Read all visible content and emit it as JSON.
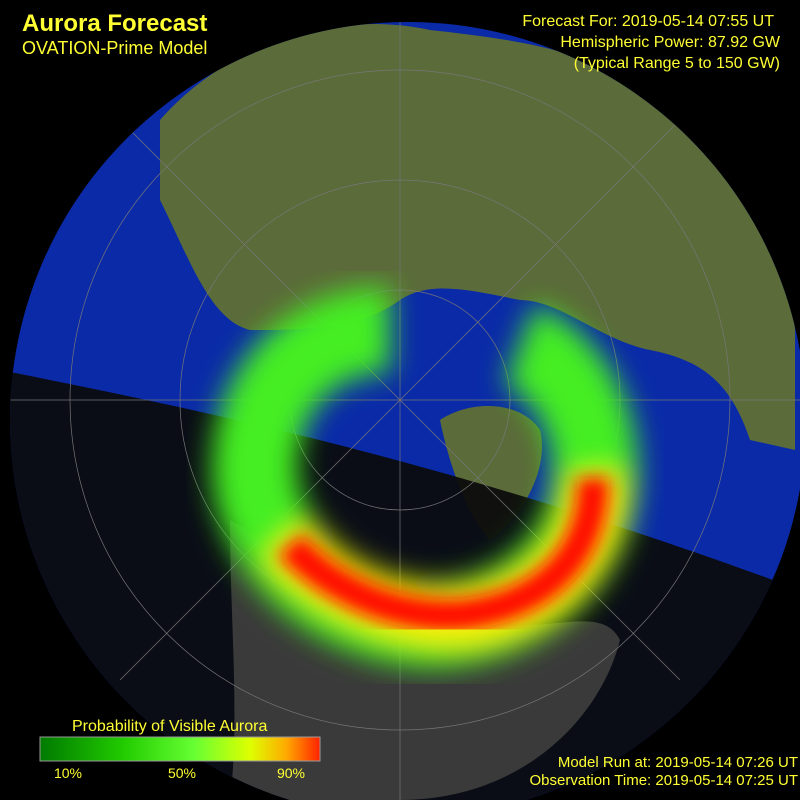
{
  "header": {
    "title": "Aurora Forecast",
    "subtitle": "OVATION-Prime Model"
  },
  "info": {
    "forecast_for": "Forecast For: 2019-05-14 07:55 UT",
    "hemispheric_power": "Hemispheric Power: 87.92 GW",
    "typical_range": "(Typical Range 5 to 150 GW)"
  },
  "legend": {
    "title": "Probability of Visible Aurora",
    "labels": [
      "10%",
      "50%",
      "90%"
    ]
  },
  "footer": {
    "model_run": "Model Run at: 2019-05-14 07:26 UT",
    "observation_time": "Observation Time: 2019-05-14 07:25 UT"
  }
}
